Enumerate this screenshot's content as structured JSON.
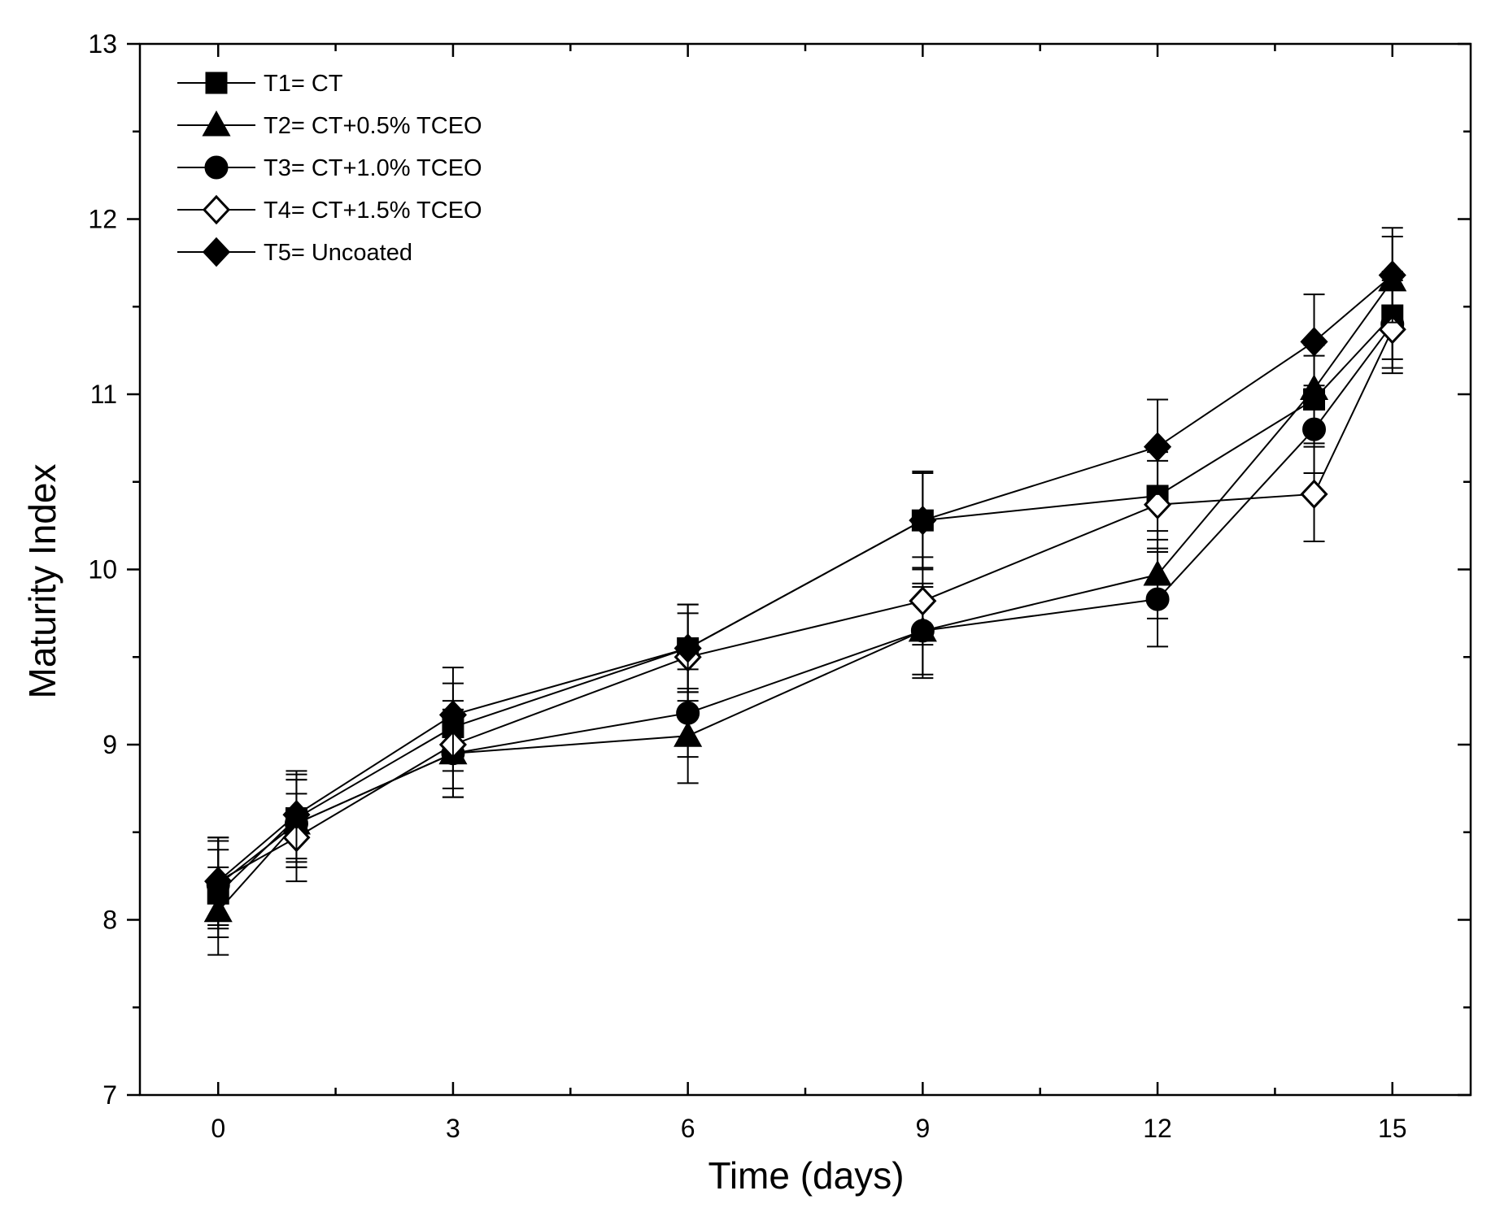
{
  "chart_data": {
    "type": "line",
    "title": "",
    "xlabel": "Time (days)",
    "ylabel": "Maturity Index",
    "xlim": [
      -1,
      16
    ],
    "ylim": [
      7,
      13
    ],
    "x_ticks": [
      0,
      3,
      6,
      9,
      12,
      15
    ],
    "x_minor_ticks": [
      1.5,
      4.5,
      7.5,
      10.5,
      13.5
    ],
    "y_ticks": [
      7,
      8,
      9,
      10,
      11,
      12,
      13
    ],
    "y_minor_ticks": [
      7.5,
      8.5,
      9.5,
      10.5,
      11.5,
      12.5
    ],
    "grid": false,
    "legend_position": "top-left",
    "x": [
      0,
      1,
      3,
      6,
      9,
      12,
      14,
      15
    ],
    "series": [
      {
        "name": "T1= CT",
        "marker": "square",
        "filled": true,
        "values": [
          8.15,
          8.58,
          9.1,
          9.55,
          10.28,
          10.42,
          10.97,
          11.45
        ],
        "errors": [
          0.25,
          0.25,
          0.25,
          0.25,
          0.27,
          0.25,
          0.25,
          0.25
        ]
      },
      {
        "name": "T2= CT+0.5% TCEO",
        "marker": "triangle",
        "filled": true,
        "values": [
          8.05,
          8.55,
          8.95,
          9.05,
          9.65,
          9.97,
          11.03,
          11.65
        ],
        "errors": [
          0.25,
          0.25,
          0.25,
          0.27,
          0.25,
          0.25,
          0.25,
          0.25
        ]
      },
      {
        "name": "T3= CT+1.0% TCEO",
        "marker": "circle",
        "filled": true,
        "values": [
          8.2,
          8.55,
          8.95,
          9.18,
          9.65,
          9.83,
          10.8,
          11.4
        ],
        "errors": [
          0.25,
          0.25,
          0.25,
          0.25,
          0.27,
          0.27,
          0.25,
          0.25
        ]
      },
      {
        "name": "T4= CT+1.5% TCEO",
        "marker": "diamond",
        "filled": false,
        "values": [
          8.22,
          8.47,
          9.0,
          9.5,
          9.82,
          10.37,
          10.43,
          11.37
        ],
        "errors": [
          0.25,
          0.25,
          0.25,
          0.25,
          0.25,
          0.25,
          0.27,
          0.25
        ]
      },
      {
        "name": "T5= Uncoated",
        "marker": "diamond",
        "filled": true,
        "values": [
          8.22,
          8.6,
          9.17,
          9.55,
          10.28,
          10.7,
          11.3,
          11.68
        ],
        "errors": [
          0.25,
          0.25,
          0.27,
          0.25,
          0.28,
          0.27,
          0.27,
          0.27
        ]
      }
    ]
  }
}
